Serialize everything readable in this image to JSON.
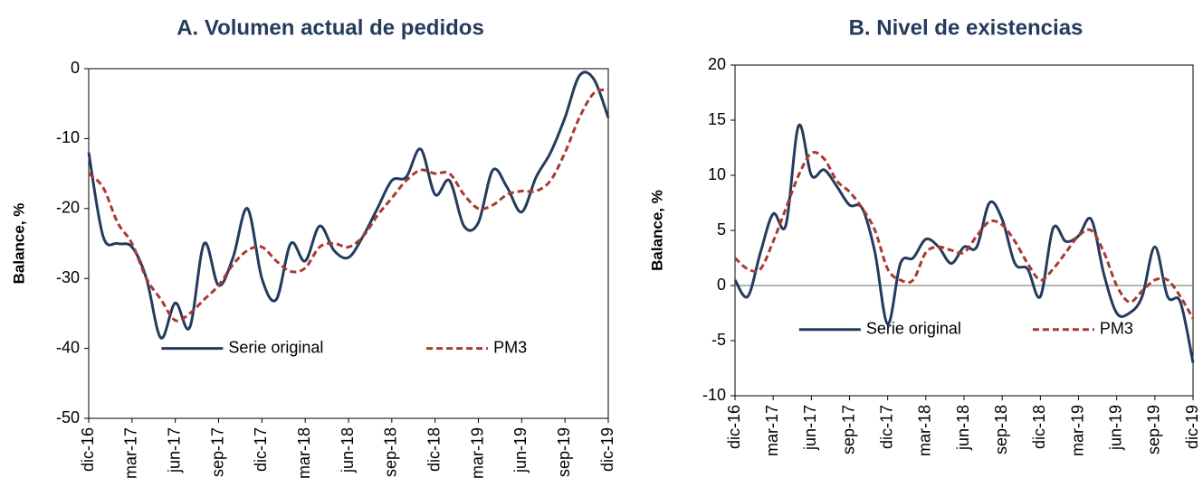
{
  "chart_data": [
    {
      "type": "line",
      "title": "A.  Volumen actual de pedidos",
      "y_label": "Balance, %",
      "categories": [
        "dic-16",
        null,
        null,
        "mar-17",
        null,
        null,
        "jun-17",
        null,
        null,
        "sep-17",
        null,
        null,
        "dic-17",
        null,
        null,
        "mar-18",
        null,
        null,
        "jun-18",
        null,
        null,
        "sep-18",
        null,
        null,
        "dic-18",
        null,
        null,
        "mar-19",
        null,
        null,
        "jun-19",
        null,
        null,
        "sep-19",
        null,
        null,
        "dic-19"
      ],
      "series": [
        {
          "name": "Serie original",
          "color": "#243b5e",
          "dash": false,
          "values": [
            -12,
            -24,
            -25,
            -25.5,
            -30,
            -38.5,
            -33.5,
            -37,
            -25,
            -31,
            -27,
            -20,
            -30,
            -33,
            -25,
            -27.5,
            -22.5,
            -26,
            -27,
            -24,
            -20,
            -16,
            -15.5,
            -11.5,
            -18,
            -16,
            -22.5,
            -22,
            -14.5,
            -17,
            -20.5,
            -15.5,
            -12,
            -7,
            -1,
            -1.5,
            -7
          ]
        },
        {
          "name": "PM3",
          "color": "#a83a32",
          "dash": true,
          "values": [
            -15,
            -17,
            -22,
            -25,
            -30,
            -33,
            -36,
            -35,
            -33,
            -31,
            -28,
            -26,
            -25.5,
            -27.5,
            -29,
            -28.5,
            -25.5,
            -25,
            -25.5,
            -24,
            -21,
            -18.5,
            -16,
            -14.5,
            -15,
            -15,
            -18,
            -20,
            -19.5,
            -18,
            -17.5,
            -17.5,
            -16,
            -12,
            -7,
            -3.5,
            -3
          ]
        }
      ],
      "ylim": [
        -50,
        0
      ],
      "yticks": [
        -50,
        -40,
        -30,
        -20,
        -10,
        0
      ],
      "grid": false,
      "legend": "lower center"
    },
    {
      "type": "line",
      "title": "B.  Nivel de existencias",
      "y_label": "Balance, %",
      "categories": [
        "dic-16",
        null,
        null,
        "mar-17",
        null,
        null,
        "jun-17",
        null,
        null,
        "sep-17",
        null,
        null,
        "dic-17",
        null,
        null,
        "mar-18",
        null,
        null,
        "jun-18",
        null,
        null,
        "sep-18",
        null,
        null,
        "dic-18",
        null,
        null,
        "mar-19",
        null,
        null,
        "jun-19",
        null,
        null,
        "sep-19",
        null,
        null,
        "dic-19"
      ],
      "series": [
        {
          "name": "Serie original",
          "color": "#243b5e",
          "dash": false,
          "values": [
            0.5,
            -1,
            3,
            6.5,
            5.5,
            14.5,
            10,
            10.5,
            9,
            7.3,
            7,
            3,
            -3.5,
            2,
            2.5,
            4.2,
            3.5,
            2,
            3.5,
            3.5,
            7.5,
            6,
            2,
            1.5,
            -1,
            5.2,
            4,
            4.5,
            6,
            1,
            -2.5,
            -2.5,
            -1,
            3.5,
            -1,
            -1.5,
            -7
          ]
        },
        {
          "name": "PM3",
          "color": "#a83a32",
          "dash": true,
          "values": [
            2.5,
            1.5,
            1.5,
            4,
            7,
            10,
            12,
            11.5,
            9.5,
            8.5,
            7,
            5,
            1.5,
            0.5,
            0.5,
            3,
            3.5,
            3.2,
            3,
            4.5,
            5.8,
            5.5,
            4,
            2,
            0.5,
            1.5,
            3,
            4.5,
            5,
            3,
            0,
            -1.5,
            -0.5,
            0.5,
            0.5,
            -1,
            -3
          ]
        }
      ],
      "ylim": [
        -10,
        20
      ],
      "yticks": [
        -10,
        -5,
        0,
        5,
        10,
        15,
        20
      ],
      "grid": false,
      "legend": "lower center"
    }
  ]
}
